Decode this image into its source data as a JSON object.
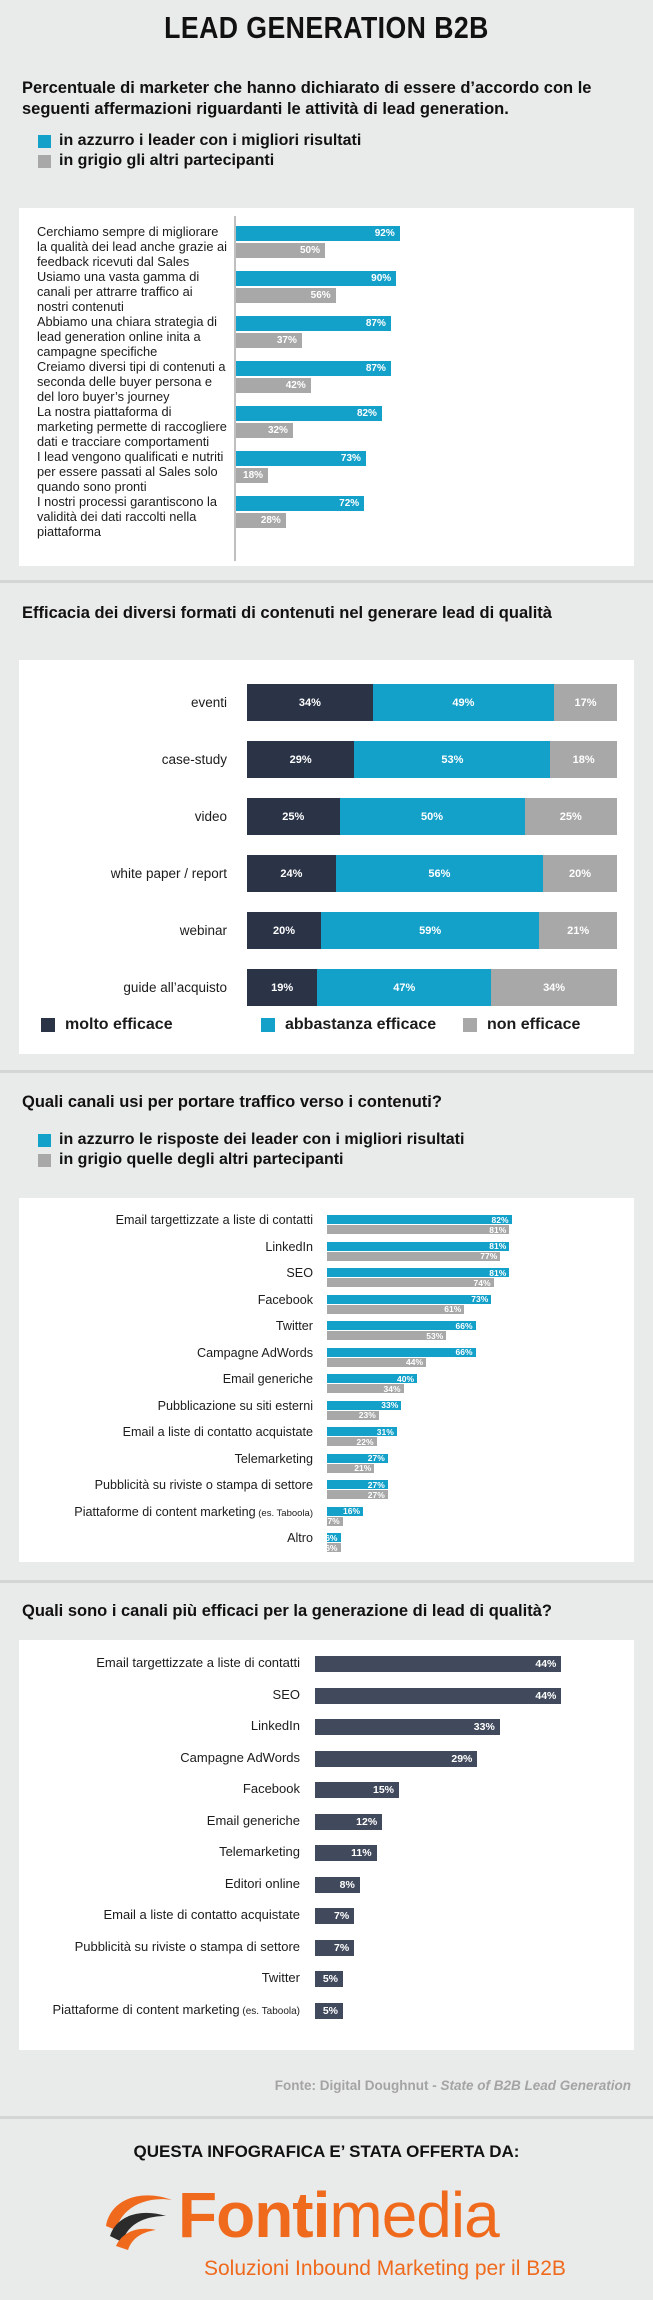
{
  "title": "LEAD GENERATION B2B",
  "colors": {
    "blue": "#13a0c9",
    "gray": "#a8a8a8",
    "navy": "#2b3447",
    "slate": "#414a5c",
    "orange": "#ef6a1c"
  },
  "section1": {
    "heading": "Percentuale di marketer che hanno dichiarato di essere d’accordo con le seguenti affermazioni riguardanti le attività di lead generation.",
    "legend_blue": "in azzurro i leader con i migliori risultati",
    "legend_gray": "in grigio gli altri partecipanti"
  },
  "section2": {
    "heading": "Efficacia dei diversi formati di contenuti nel generare lead di qualità",
    "legend": [
      "molto efficace",
      "abbastanza efficace",
      "non efficace"
    ]
  },
  "section3": {
    "heading": "Quali canali usi per portare traffico verso i contenuti?",
    "legend_blue": "in azzurro le risposte dei leader con i migliori risultati",
    "legend_gray": "in grigio quelle degli altri partecipanti"
  },
  "section4": {
    "heading": "Quali sono i canali più efficaci per la generazione di lead di qualità?"
  },
  "footer": {
    "source_prefix": "Fonte: Digital Doughnut - ",
    "source_title": "State of B2B Lead Generation",
    "offer": "QUESTA INFOGRAFICA E’ STATA OFFERTA DA:",
    "brand_part1": "Fonti",
    "brand_part2": "media",
    "tagline": "Soluzioni Inbound Marketing per il B2B"
  },
  "chart_data": [
    {
      "type": "bar",
      "orientation": "horizontal",
      "categories": [
        "Cerchiamo sempre di migliorare la qualità dei lead anche grazie ai feedback ricevuti dal Sales",
        "Usiamo una vasta gamma di canali per attrarre traffico ai nostri contenuti",
        "Abbiamo una chiara strategia di lead generation online inita a campagne specifiche",
        "Creiamo diversi tipi di contenuti a seconda delle buyer persona e del loro buyer’s journey",
        "La nostra piattaforma di marketing permette di raccogliere dati e tracciare comportamenti",
        "I lead vengono qualificati e nutriti per essere passati al Sales solo quando sono pronti",
        "I nostri processi garantiscono la validità dei dati raccolti nella piattaforma"
      ],
      "series": [
        {
          "name": "leader",
          "values": [
            92,
            90,
            87,
            87,
            82,
            73,
            72
          ]
        },
        {
          "name": "altri partecipanti",
          "values": [
            50,
            56,
            37,
            42,
            32,
            18,
            28
          ]
        }
      ],
      "xlim": [
        0,
        100
      ]
    },
    {
      "type": "bar",
      "orientation": "horizontal",
      "stacked": true,
      "categories": [
        "eventi",
        "case-study",
        "video",
        "white paper / report",
        "webinar",
        "guide all’acquisto"
      ],
      "series": [
        {
          "name": "molto efficace",
          "values": [
            34,
            29,
            25,
            24,
            20,
            19
          ]
        },
        {
          "name": "abbastanza efficace",
          "values": [
            49,
            53,
            50,
            56,
            59,
            47
          ]
        },
        {
          "name": "non efficace",
          "values": [
            17,
            18,
            25,
            20,
            21,
            34
          ]
        }
      ]
    },
    {
      "type": "bar",
      "orientation": "horizontal",
      "categories": [
        "Email targettizzate a liste di contatti",
        "LinkedIn",
        "SEO",
        "Facebook",
        "Twitter",
        "Campagne  AdWords",
        "Email generiche",
        "Pubblicazione su siti esterni",
        "Email a liste di contatto acquistate",
        "Telemarketing",
        "Pubblicità su riviste o stampa di settore",
        "Piattaforme di content marketing",
        "Altro"
      ],
      "category_notes": [
        "",
        "",
        "",
        "",
        "",
        "",
        "",
        "",
        "",
        "",
        "",
        "(es. Taboola)",
        ""
      ],
      "series": [
        {
          "name": "leader",
          "values": [
            82,
            81,
            81,
            73,
            66,
            66,
            40,
            33,
            31,
            27,
            27,
            16,
            6
          ]
        },
        {
          "name": "altri partecipanti",
          "values": [
            81,
            77,
            74,
            61,
            53,
            44,
            34,
            23,
            22,
            21,
            27,
            7,
            6
          ]
        }
      ],
      "xlim": [
        0,
        100
      ]
    },
    {
      "type": "bar",
      "orientation": "horizontal",
      "categories": [
        "Email targettizzate a liste di contatti",
        "SEO",
        "LinkedIn",
        "Campagne  AdWords",
        "Facebook",
        "Email generiche",
        "Telemarketing",
        "Editori online",
        "Email a liste di contatto acquistate",
        "Pubblicità su riviste o stampa di settore",
        "Twitter",
        "Piattaforme di content marketing"
      ],
      "category_notes": [
        "",
        "",
        "",
        "",
        "",
        "",
        "",
        "",
        "",
        "",
        "",
        "(es. Taboola)"
      ],
      "values": [
        44,
        44,
        33,
        29,
        15,
        12,
        11,
        8,
        7,
        7,
        5,
        5
      ],
      "xlim": [
        0,
        50
      ]
    }
  ]
}
